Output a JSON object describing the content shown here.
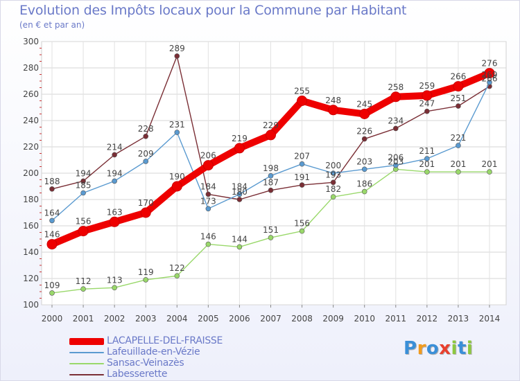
{
  "header": {
    "title": "Evolution des Impôts locaux pour la Commune par Habitant",
    "subtitle": "(en € et par an)"
  },
  "logo": {
    "text": "Proxiti",
    "letters": [
      {
        "ch": "P",
        "color": "#3a8fd8"
      },
      {
        "ch": "r",
        "color": "#f29b1d"
      },
      {
        "ch": "o",
        "color": "#3a8fd8"
      },
      {
        "ch": "x",
        "color": "#e8402e"
      },
      {
        "ch": "i",
        "color": "#8cc83f"
      },
      {
        "ch": "t",
        "color": "#3a8fd8"
      },
      {
        "ch": "i",
        "color": "#8cc83f"
      }
    ]
  },
  "chart_data": {
    "type": "line",
    "x": [
      2000,
      2001,
      2002,
      2003,
      2004,
      2005,
      2006,
      2007,
      2008,
      2009,
      2010,
      2011,
      2012,
      2013,
      2014
    ],
    "ylim": [
      100,
      300
    ],
    "yticks": [
      100,
      120,
      140,
      160,
      180,
      200,
      220,
      240,
      260,
      280,
      300
    ],
    "grid": true,
    "legend_position": "bottom-left",
    "series": [
      {
        "name": "LACAPELLE-DEL-FRAISSE",
        "color": "#ee0000",
        "values": [
          146,
          156,
          163,
          170,
          190,
          206,
          219,
          229,
          255,
          248,
          245,
          258,
          259,
          266,
          276
        ],
        "labels": [
          "146",
          "156",
          "163",
          "170",
          "190",
          "206",
          "219",
          "229",
          "255",
          "248",
          "245",
          "258",
          "259",
          "266",
          "276"
        ]
      },
      {
        "name": "Lafeuillade-en-Vézie",
        "color": "#5a9ad0",
        "values": [
          164,
          185,
          194,
          209,
          231,
          173,
          184,
          198,
          207,
          200,
          203,
          206,
          211,
          221,
          269
        ],
        "labels": [
          "164",
          "185",
          "194",
          "209",
          "231",
          "173",
          "184",
          "198",
          "207",
          "200",
          "203",
          "206",
          "211",
          "221",
          "269"
        ]
      },
      {
        "name": "Sansac-Veinazès",
        "color": "#99d86a",
        "values": [
          109,
          112,
          113,
          119,
          122,
          146,
          144,
          151,
          156,
          182,
          186,
          203,
          201,
          201,
          201
        ],
        "labels": [
          "109",
          "112",
          "113",
          "119",
          "122",
          "146",
          "144",
          "151",
          "156",
          "182",
          "186",
          "203",
          "201",
          "201",
          "201"
        ]
      },
      {
        "name": "Labesserette",
        "color": "#7a2e35",
        "values": [
          188,
          194,
          214,
          228,
          289,
          184,
          180,
          187,
          191,
          193,
          226,
          234,
          247,
          251,
          266
        ],
        "labels": [
          "188",
          "194",
          "214",
          "228",
          "289",
          "184",
          "180",
          "187",
          "191",
          "193",
          "226",
          "234",
          "247",
          "251",
          "266"
        ]
      }
    ]
  }
}
